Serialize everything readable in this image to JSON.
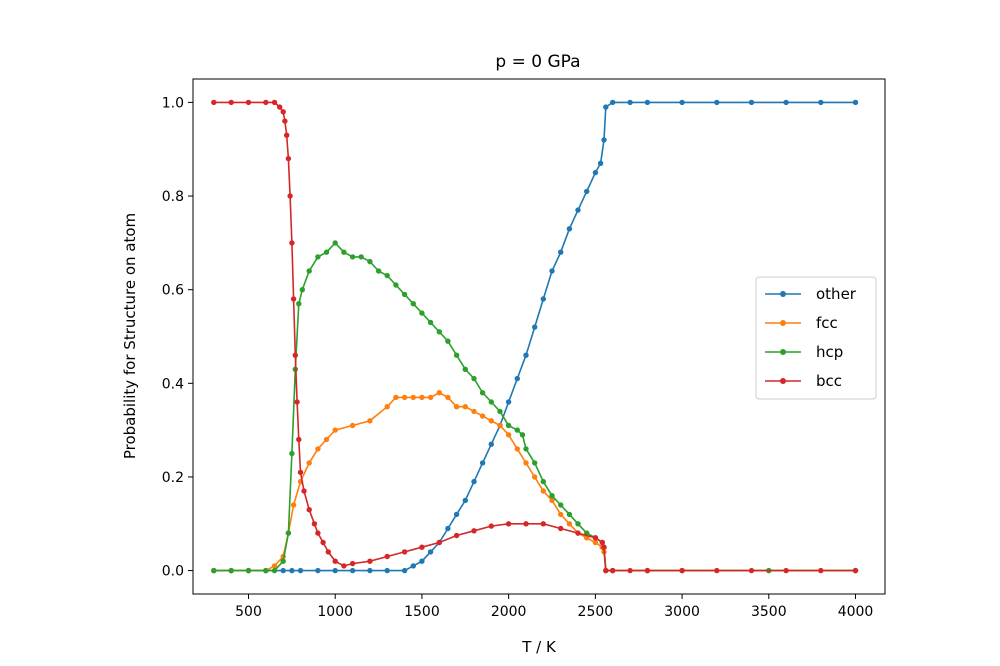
{
  "chart_data": {
    "type": "line",
    "title": "p = 0 GPa",
    "xlabel": "T / K",
    "ylabel": "Probability for Structure on atom",
    "xlim": [
      180,
      4170
    ],
    "ylim": [
      -0.05,
      1.05
    ],
    "xticks": [
      500,
      1000,
      1500,
      2000,
      2500,
      3000,
      3500,
      4000
    ],
    "yticks": [
      0.0,
      0.2,
      0.4,
      0.6,
      0.8,
      1.0
    ],
    "xtick_labels": [
      "500",
      "1000",
      "1500",
      "2000",
      "2500",
      "3000",
      "3500",
      "4000"
    ],
    "ytick_labels": [
      "0.0",
      "0.2",
      "0.4",
      "0.6",
      "0.8",
      "1.0"
    ],
    "grid": false,
    "legend_position": "center-right",
    "series": [
      {
        "name": "other",
        "color": "#1f77b4",
        "x": [
          300,
          400,
          500,
          600,
          700,
          750,
          800,
          900,
          1000,
          1100,
          1200,
          1300,
          1400,
          1450,
          1500,
          1550,
          1600,
          1650,
          1700,
          1750,
          1800,
          1850,
          1900,
          1950,
          2000,
          2050,
          2100,
          2150,
          2200,
          2250,
          2300,
          2350,
          2400,
          2450,
          2500,
          2530,
          2550,
          2560,
          2600,
          2700,
          2800,
          3000,
          3200,
          3400,
          3600,
          3800,
          4000
        ],
        "y": [
          0.0,
          0.0,
          0.0,
          0.0,
          0.0,
          0.0,
          0.0,
          0.0,
          0.0,
          0.0,
          0.0,
          0.0,
          0.0,
          0.01,
          0.02,
          0.04,
          0.06,
          0.09,
          0.12,
          0.15,
          0.19,
          0.23,
          0.27,
          0.31,
          0.36,
          0.41,
          0.46,
          0.52,
          0.58,
          0.64,
          0.68,
          0.73,
          0.77,
          0.81,
          0.85,
          0.87,
          0.92,
          0.99,
          1.0,
          1.0,
          1.0,
          1.0,
          1.0,
          1.0,
          1.0,
          1.0,
          1.0
        ]
      },
      {
        "name": "fcc",
        "color": "#ff7f0e",
        "x": [
          300,
          400,
          500,
          600,
          650,
          700,
          730,
          760,
          800,
          850,
          900,
          950,
          1000,
          1100,
          1200,
          1300,
          1350,
          1400,
          1450,
          1500,
          1550,
          1600,
          1650,
          1700,
          1750,
          1800,
          1850,
          1900,
          1950,
          2000,
          2050,
          2100,
          2150,
          2200,
          2250,
          2300,
          2350,
          2400,
          2450,
          2500,
          2540,
          2550,
          2560,
          2600,
          2800,
          3000,
          3500,
          4000
        ],
        "y": [
          0.0,
          0.0,
          0.0,
          0.0,
          0.01,
          0.03,
          0.08,
          0.14,
          0.19,
          0.23,
          0.26,
          0.28,
          0.3,
          0.31,
          0.32,
          0.35,
          0.37,
          0.37,
          0.37,
          0.37,
          0.37,
          0.38,
          0.37,
          0.35,
          0.35,
          0.34,
          0.33,
          0.32,
          0.31,
          0.29,
          0.26,
          0.23,
          0.2,
          0.17,
          0.15,
          0.12,
          0.1,
          0.08,
          0.07,
          0.06,
          0.05,
          0.04,
          0.0,
          0.0,
          0.0,
          0.0,
          0.0,
          0.0
        ]
      },
      {
        "name": "hcp",
        "color": "#2ca02c",
        "x": [
          300,
          400,
          500,
          600,
          650,
          700,
          730,
          750,
          770,
          790,
          810,
          850,
          900,
          950,
          1000,
          1050,
          1100,
          1150,
          1200,
          1250,
          1300,
          1350,
          1400,
          1450,
          1500,
          1550,
          1600,
          1650,
          1700,
          1750,
          1800,
          1850,
          1900,
          1950,
          2000,
          2050,
          2080,
          2100,
          2150,
          2200,
          2250,
          2300,
          2350,
          2400,
          2450,
          2500,
          2540,
          2550,
          2560,
          2600,
          2800,
          3000,
          3500,
          4000
        ],
        "y": [
          0.0,
          0.0,
          0.0,
          0.0,
          0.0,
          0.02,
          0.08,
          0.25,
          0.43,
          0.57,
          0.6,
          0.64,
          0.67,
          0.68,
          0.7,
          0.68,
          0.67,
          0.67,
          0.66,
          0.64,
          0.63,
          0.61,
          0.59,
          0.57,
          0.55,
          0.53,
          0.51,
          0.49,
          0.46,
          0.43,
          0.41,
          0.38,
          0.36,
          0.34,
          0.31,
          0.3,
          0.29,
          0.26,
          0.23,
          0.19,
          0.16,
          0.14,
          0.12,
          0.1,
          0.08,
          0.07,
          0.06,
          0.05,
          0.0,
          0.0,
          0.0,
          0.0,
          0.0,
          0.0
        ]
      },
      {
        "name": "bcc",
        "color": "#d62728",
        "x": [
          300,
          400,
          500,
          600,
          650,
          680,
          700,
          710,
          720,
          730,
          740,
          750,
          760,
          770,
          780,
          790,
          800,
          820,
          850,
          880,
          900,
          930,
          960,
          1000,
          1050,
          1100,
          1200,
          1300,
          1400,
          1500,
          1600,
          1700,
          1800,
          1900,
          2000,
          2100,
          2200,
          2300,
          2400,
          2500,
          2540,
          2550,
          2560,
          2600,
          2700,
          2800,
          3000,
          3200,
          3400,
          3600,
          3800,
          4000
        ],
        "y": [
          1.0,
          1.0,
          1.0,
          1.0,
          1.0,
          0.99,
          0.98,
          0.96,
          0.93,
          0.88,
          0.8,
          0.7,
          0.58,
          0.46,
          0.36,
          0.28,
          0.21,
          0.17,
          0.13,
          0.1,
          0.08,
          0.06,
          0.04,
          0.02,
          0.01,
          0.015,
          0.02,
          0.03,
          0.04,
          0.05,
          0.06,
          0.075,
          0.085,
          0.095,
          0.1,
          0.1,
          0.1,
          0.09,
          0.08,
          0.07,
          0.06,
          0.05,
          0.0,
          0.0,
          0.0,
          0.0,
          0.0,
          0.0,
          0.0,
          0.0,
          0.0,
          0.0
        ]
      }
    ]
  }
}
